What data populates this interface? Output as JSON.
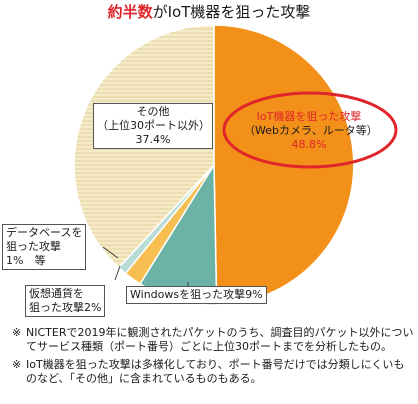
{
  "chart_data": {
    "type": "pie",
    "title_highlight": "約半数",
    "title_rest": "がIoT機器を狙った攻撃",
    "slices": [
      {
        "key": "iot",
        "line1": "IoT機器を狙った攻撃",
        "line2": "（Webカメラ、ルータ等）",
        "value_label": "48.8%",
        "value": 48.8,
        "color": "#f39019"
      },
      {
        "key": "windows",
        "line1": "Windowsを狙った攻撃9%",
        "value": 9,
        "color": "#6ab3a6"
      },
      {
        "key": "crypto",
        "line1": "仮想通貨を",
        "line2": "狙った攻撃2%",
        "value": 2,
        "color": "#f7bf52"
      },
      {
        "key": "database",
        "line1": "データベースを",
        "line2": "狙った攻撃",
        "line3": "1%　等",
        "value": 1,
        "color": "#b9ddd6"
      },
      {
        "key": "other",
        "line1": "その他",
        "line2": "（上位30ポート以外）",
        "value_label": "37.4%",
        "value": 37.4,
        "color": "#f3e7c2"
      }
    ]
  },
  "notes": [
    {
      "mark": "※",
      "text": "NICTERで2019年に観測されたパケットのうち、調査目的パケット以外についてサービス種類（ポート番号）ごとに上位30ポートまでを分析したもの。"
    },
    {
      "mark": "※",
      "text": "IoT機器を狙った攻撃は多様化しており、ポート番号だけでは分類しにくいものなど、「その他」に含まれているものもある。"
    }
  ]
}
